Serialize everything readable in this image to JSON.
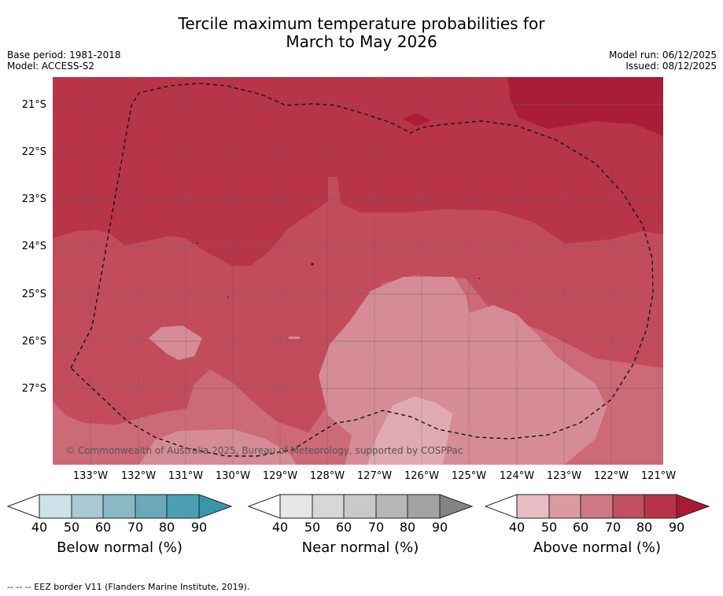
{
  "title_line1": "Tercile maximum temperature probabilities for",
  "title_line2": "March to May 2026",
  "base_period": "Base period: 1981-2018",
  "model": "Model: ACCESS-S2",
  "model_run": "Model run: 06/12/2025",
  "issued": "Issued: 08/12/2025",
  "copyright": "© Commonwealth of Australia 2025, Bureau of Meteorology, supported by COSPPac",
  "lat_labels": [
    "21°S",
    "22°S",
    "23°S",
    "24°S",
    "25°S",
    "26°S",
    "27°S"
  ],
  "lon_labels": [
    "133°W",
    "132°W",
    "131°W",
    "130°W",
    "129°W",
    "128°W",
    "127°W",
    "126°W",
    "125°W",
    "124°W",
    "123°W",
    "122°W",
    "121°W"
  ],
  "colorbars": [
    {
      "label": "Below normal (%)",
      "ticks": [
        "40",
        "50",
        "60",
        "70",
        "80",
        "90"
      ],
      "colors": [
        "#cce2e8",
        "#a9cad2",
        "#8ab9c5",
        "#6aa9b9",
        "#4aa0b2",
        "#3896ab"
      ]
    },
    {
      "label": "Near normal (%)",
      "ticks": [
        "40",
        "50",
        "60",
        "70",
        "80",
        "90"
      ],
      "colors": [
        "#e6e6e6",
        "#d7d7d7",
        "#c9c9c9",
        "#b6b6b6",
        "#a2a2a2",
        "#838383"
      ]
    },
    {
      "label": "Above normal (%)",
      "ticks": [
        "40",
        "50",
        "60",
        "70",
        "80",
        "90"
      ],
      "colors": [
        "#e8bcc2",
        "#d99aa2",
        "#cd7882",
        "#c0505f",
        "#b83448",
        "#a81a35"
      ]
    }
  ],
  "footnote": "-- -- -- EEZ border V11 (Flanders Marine Institute, 2019)."
}
